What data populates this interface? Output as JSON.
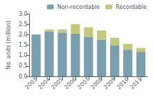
{
  "chart_data": {
    "type": "bar",
    "stacked": true,
    "categories": [
      "2003",
      "2004",
      "2005",
      "2006",
      "2007",
      "2008",
      "2009",
      "2010",
      "2011"
    ],
    "series": [
      {
        "name": "Non-recordable",
        "color": "#7a9faf",
        "values": [
          2.0,
          2.15,
          2.1,
          2.05,
          1.9,
          1.75,
          1.5,
          1.28,
          1.18
        ]
      },
      {
        "name": "Recordable",
        "color": "#c5c87a",
        "values": [
          0.02,
          0.1,
          0.15,
          0.45,
          0.45,
          0.45,
          0.35,
          0.28,
          0.18
        ]
      }
    ],
    "ylabel": "No. units (million)",
    "ylim": [
      0,
      3.0
    ],
    "yticks": [
      {
        "value": 0,
        "label": "0.0"
      },
      {
        "value": 0.5,
        "label": "0.5"
      },
      {
        "value": 1.0,
        "label": "1.0"
      },
      {
        "value": 1.5,
        "label": "1.5"
      },
      {
        "value": 2.0,
        "label": "2.0"
      },
      {
        "value": 2.5,
        "label": "2.5"
      },
      {
        "value": 3.0,
        "label": "3.0"
      }
    ],
    "grid": false,
    "legend": "upper right"
  }
}
